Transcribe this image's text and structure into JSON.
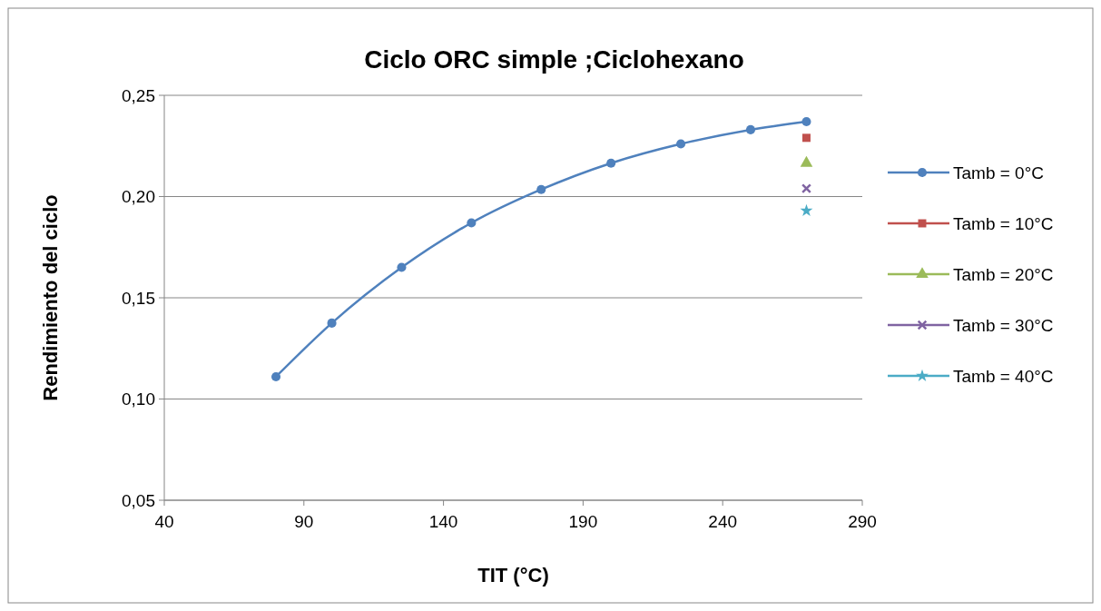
{
  "chart_data": {
    "type": "line",
    "title": "Ciclo ORC simple ;Ciclohexano",
    "xlabel": "TIT (°C)",
    "ylabel": "Rendimiento del ciclo",
    "xlim": [
      40,
      290
    ],
    "xticks": [
      40,
      90,
      140,
      190,
      240,
      290
    ],
    "ylim": [
      0.05,
      0.25
    ],
    "yticks": [
      {
        "value": 0.05,
        "label": "0,05"
      },
      {
        "value": 0.1,
        "label": "0,10"
      },
      {
        "value": 0.15,
        "label": "0,15"
      },
      {
        "value": 0.2,
        "label": "0,20"
      },
      {
        "value": 0.25,
        "label": "0,25"
      }
    ],
    "grid": "y",
    "legend": "right",
    "line_style": "solid",
    "series": [
      {
        "name": "Tamb = 0°C",
        "color": "#4f81bd",
        "marker": "circle",
        "x": [
          80,
          100,
          125,
          150,
          175,
          200,
          225,
          250,
          270
        ],
        "values": [
          0.111,
          0.1375,
          0.165,
          0.187,
          0.2035,
          0.2165,
          0.226,
          0.233,
          0.237
        ]
      },
      {
        "name": "Tamb = 10°C",
        "color": "#c0504d",
        "marker": "square",
        "x": [
          270
        ],
        "values": [
          0.229
        ]
      },
      {
        "name": "Tamb = 20°C",
        "color": "#9bbb59",
        "marker": "triangle",
        "x": [
          270
        ],
        "values": [
          0.2165
        ]
      },
      {
        "name": "Tamb = 30°C",
        "color": "#8064a2",
        "marker": "cross",
        "x": [
          270
        ],
        "values": [
          0.204
        ]
      },
      {
        "name": "Tamb = 40°C",
        "color": "#4bacc6",
        "marker": "star",
        "x": [
          270
        ],
        "values": [
          0.193
        ]
      }
    ]
  }
}
